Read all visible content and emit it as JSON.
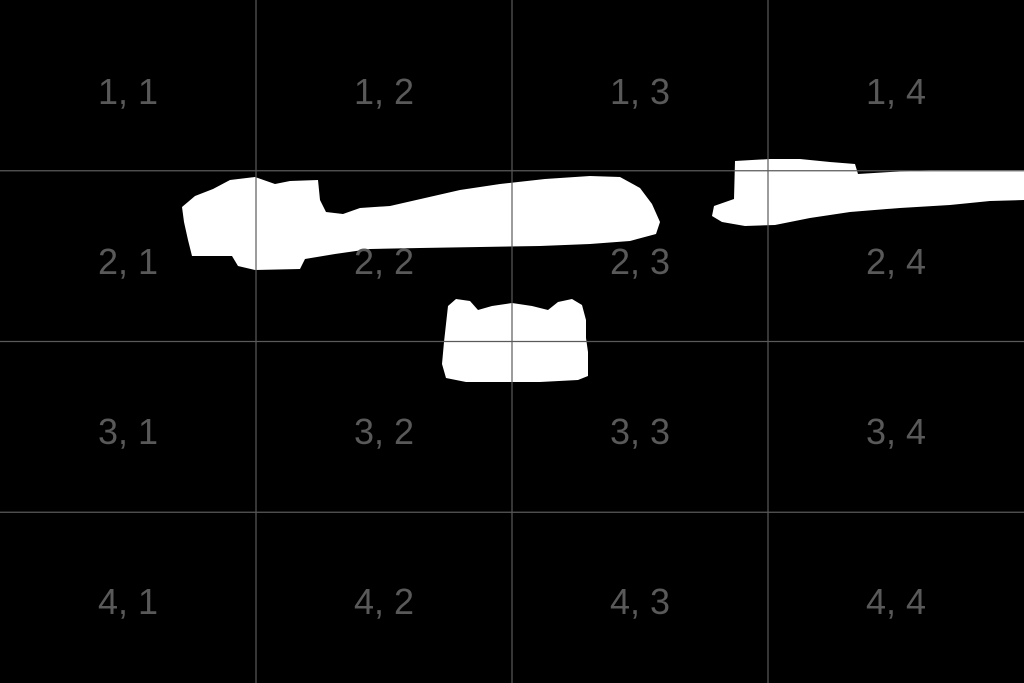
{
  "grid": {
    "rows": 4,
    "cols": 4,
    "line_color": "#5a5a5a",
    "label_color": "#595959",
    "background": "#000000",
    "cells": [
      [
        "1, 1",
        "1, 2",
        "1, 3",
        "1, 4"
      ],
      [
        "2, 1",
        "2, 2",
        "2, 3",
        "2, 4"
      ],
      [
        "3, 1",
        "3, 2",
        "3, 3",
        "3, 4"
      ],
      [
        "4, 1",
        "4, 2",
        "4, 3",
        "4, 4"
      ]
    ]
  },
  "mask": {
    "color": "#ffffff"
  }
}
